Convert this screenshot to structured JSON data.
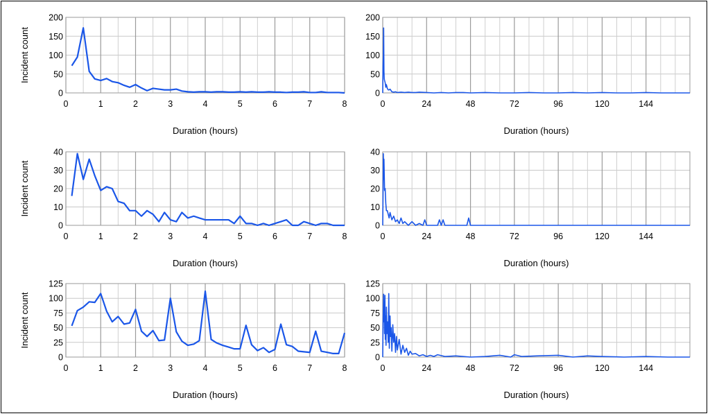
{
  "chart_data": [
    {
      "type": "line",
      "position": "row1-left",
      "xlabel": "Duration (hours)",
      "ylabel": "Incident count",
      "xlim": [
        0,
        8
      ],
      "ylim": [
        0,
        200
      ],
      "xticks": [
        0,
        1,
        2,
        3,
        4,
        5,
        6,
        7,
        8
      ],
      "yticks": [
        0,
        50,
        100,
        150,
        200
      ],
      "x_minor_step": 0.5,
      "series": [
        {
          "x": [
            0.17,
            0.33,
            0.5,
            0.67,
            0.83,
            1.0,
            1.17,
            1.33,
            1.5,
            1.67,
            1.83,
            2.0,
            2.17,
            2.33,
            2.5,
            2.67,
            2.83,
            3.0,
            3.17,
            3.33,
            3.5,
            3.67,
            3.83,
            4.0,
            4.17,
            4.33,
            4.5,
            4.67,
            4.83,
            5.0,
            5.17,
            5.33,
            5.5,
            5.67,
            5.83,
            6.0,
            6.17,
            6.33,
            6.5,
            6.67,
            6.83,
            7.0,
            7.17,
            7.33,
            7.5,
            7.67,
            7.83,
            8.0
          ],
          "values": [
            72,
            95,
            172,
            57,
            37,
            33,
            38,
            30,
            27,
            20,
            15,
            22,
            13,
            6,
            12,
            10,
            8,
            8,
            10,
            5,
            3,
            2,
            3,
            3,
            2,
            3,
            3,
            2,
            2,
            3,
            2,
            3,
            2,
            2,
            3,
            2,
            2,
            1,
            2,
            2,
            3,
            1,
            1,
            3,
            1,
            1,
            1,
            0
          ]
        }
      ]
    },
    {
      "type": "line",
      "position": "row1-right",
      "xlabel": "Duration (hours)",
      "ylabel": "",
      "xlim": [
        0,
        168
      ],
      "ylim": [
        0,
        200
      ],
      "xticks": [
        0,
        24,
        48,
        72,
        96,
        120,
        144
      ],
      "yticks": [
        0,
        50,
        100,
        150,
        200
      ],
      "x_minor_step": 8,
      "series": [
        {
          "x": [
            0,
            0.17,
            0.33,
            0.5,
            0.67,
            0.83,
            1,
            1.33,
            1.67,
            2,
            2.5,
            3,
            3.5,
            4,
            5,
            6,
            7,
            8,
            10,
            12,
            14,
            16,
            18,
            20,
            24,
            28,
            32,
            36,
            40,
            44,
            48,
            56,
            64,
            72,
            80,
            88,
            96,
            104,
            112,
            120,
            128,
            136,
            144,
            152,
            160,
            168
          ],
          "values": [
            0,
            72,
            95,
            172,
            57,
            37,
            33,
            27,
            15,
            22,
            12,
            8,
            8,
            10,
            3,
            2,
            3,
            1,
            2,
            1,
            2,
            1,
            1,
            2,
            1,
            0,
            1,
            0,
            1,
            1,
            0,
            1,
            0,
            0,
            1,
            0,
            0,
            1,
            0,
            1,
            0,
            0,
            1,
            0,
            0,
            0
          ]
        }
      ]
    },
    {
      "type": "line",
      "position": "row2-left",
      "xlabel": "Duration (hours)",
      "ylabel": "Incident count",
      "xlim": [
        0,
        8
      ],
      "ylim": [
        0,
        40
      ],
      "xticks": [
        0,
        1,
        2,
        3,
        4,
        5,
        6,
        7,
        8
      ],
      "yticks": [
        0,
        10,
        20,
        30,
        40
      ],
      "x_minor_step": 0.5,
      "series": [
        {
          "x": [
            0.17,
            0.33,
            0.5,
            0.67,
            0.83,
            1.0,
            1.17,
            1.33,
            1.5,
            1.67,
            1.83,
            2.0,
            2.17,
            2.33,
            2.5,
            2.67,
            2.83,
            3.0,
            3.17,
            3.33,
            3.5,
            3.67,
            3.83,
            4.0,
            4.17,
            4.33,
            4.5,
            4.67,
            4.83,
            5.0,
            5.17,
            5.33,
            5.5,
            5.67,
            5.83,
            6.0,
            6.17,
            6.33,
            6.5,
            6.67,
            6.83,
            7.0,
            7.17,
            7.33,
            7.5,
            7.67,
            7.83,
            8.0
          ],
          "values": [
            16,
            39,
            25,
            36,
            27,
            19,
            21,
            20,
            13,
            12,
            8,
            8,
            5,
            8,
            6,
            2,
            7,
            3,
            2,
            7,
            4,
            5,
            4,
            3,
            3,
            3,
            3,
            3,
            1,
            5,
            1,
            1,
            0,
            1,
            0,
            1,
            2,
            3,
            0,
            0,
            2,
            1,
            0,
            1,
            1,
            0,
            0,
            0
          ]
        }
      ]
    },
    {
      "type": "line",
      "position": "row2-right",
      "xlabel": "Duration (hours)",
      "ylabel": "",
      "xlim": [
        0,
        168
      ],
      "ylim": [
        0,
        40
      ],
      "xticks": [
        0,
        24,
        48,
        72,
        96,
        120,
        144
      ],
      "yticks": [
        0,
        10,
        20,
        30,
        40
      ],
      "x_minor_step": 8,
      "series": [
        {
          "x": [
            0,
            0.17,
            0.33,
            0.5,
            0.67,
            1,
            1.33,
            1.67,
            2,
            2.5,
            3,
            3.5,
            4,
            5,
            6,
            7,
            8,
            9,
            10,
            11,
            12,
            14,
            16,
            18,
            20,
            22,
            23,
            24,
            25,
            28,
            30,
            31,
            32,
            33,
            34,
            36,
            40,
            44,
            46,
            47,
            48,
            50,
            56,
            64,
            72,
            96,
            120,
            144,
            168
          ],
          "values": [
            0,
            16,
            39,
            25,
            36,
            19,
            20,
            12,
            8,
            8,
            6,
            4,
            7,
            3,
            5,
            2,
            3,
            1,
            4,
            1,
            2,
            0,
            2,
            0,
            1,
            0,
            3,
            0,
            0,
            0,
            0,
            3,
            0,
            3,
            0,
            0,
            0,
            0,
            0,
            4,
            0,
            0,
            0,
            0,
            0,
            0,
            0,
            0,
            0
          ]
        }
      ]
    },
    {
      "type": "line",
      "position": "row3-left",
      "xlabel": "Duration (hours)",
      "ylabel": "Incident count",
      "xlim": [
        0,
        8
      ],
      "ylim": [
        0,
        125
      ],
      "xticks": [
        0,
        1,
        2,
        3,
        4,
        5,
        6,
        7,
        8
      ],
      "yticks": [
        0,
        25,
        50,
        75,
        100,
        125
      ],
      "x_minor_step": 0.5,
      "series": [
        {
          "x": [
            0.17,
            0.33,
            0.5,
            0.67,
            0.83,
            1.0,
            1.17,
            1.33,
            1.5,
            1.67,
            1.83,
            2.0,
            2.17,
            2.33,
            2.5,
            2.67,
            2.83,
            3.0,
            3.17,
            3.33,
            3.5,
            3.67,
            3.83,
            4.0,
            4.17,
            4.33,
            4.5,
            4.67,
            4.83,
            5.0,
            5.17,
            5.33,
            5.5,
            5.67,
            5.83,
            6.0,
            6.17,
            6.33,
            6.5,
            6.67,
            6.83,
            7.0,
            7.17,
            7.33,
            7.5,
            7.67,
            7.83,
            8.0
          ],
          "values": [
            53,
            79,
            85,
            94,
            93,
            108,
            78,
            60,
            69,
            56,
            58,
            81,
            44,
            35,
            45,
            28,
            29,
            100,
            43,
            27,
            20,
            22,
            28,
            112,
            30,
            24,
            20,
            17,
            14,
            14,
            54,
            21,
            11,
            16,
            8,
            13,
            56,
            21,
            18,
            10,
            9,
            8,
            44,
            10,
            8,
            6,
            6,
            41
          ]
        }
      ]
    },
    {
      "type": "line",
      "position": "row3-right",
      "xlabel": "Duration (hours)",
      "ylabel": "",
      "xlim": [
        0,
        168
      ],
      "ylim": [
        0,
        125
      ],
      "xticks": [
        0,
        24,
        48,
        72,
        96,
        120,
        144
      ],
      "yticks": [
        0,
        25,
        50,
        75,
        100,
        125
      ],
      "x_minor_step": 8,
      "series": [
        {
          "x": [
            0,
            0.17,
            0.33,
            0.5,
            0.67,
            0.83,
            1,
            1.2,
            1.4,
            1.6,
            1.8,
            2,
            2.3,
            2.6,
            3,
            3.3,
            3.6,
            4,
            4.3,
            4.6,
            5,
            5.5,
            6,
            6.5,
            7,
            7.5,
            8,
            9,
            10,
            11,
            12,
            13,
            14,
            15,
            16,
            18,
            20,
            22,
            24,
            26,
            28,
            30,
            34,
            40,
            48,
            56,
            64,
            70,
            72,
            76,
            84,
            96,
            104,
            112,
            120,
            132,
            144,
            156,
            168
          ],
          "values": [
            0,
            53,
            85,
            107,
            60,
            94,
            40,
            105,
            30,
            70,
            20,
            85,
            40,
            60,
            25,
            108,
            15,
            70,
            35,
            50,
            10,
            55,
            25,
            40,
            8,
            35,
            12,
            30,
            5,
            20,
            8,
            15,
            3,
            10,
            5,
            6,
            2,
            4,
            1,
            3,
            1,
            4,
            1,
            2,
            0,
            1,
            3,
            0,
            4,
            1,
            2,
            3,
            0,
            2,
            1,
            0,
            1,
            0,
            0
          ]
        }
      ]
    }
  ]
}
